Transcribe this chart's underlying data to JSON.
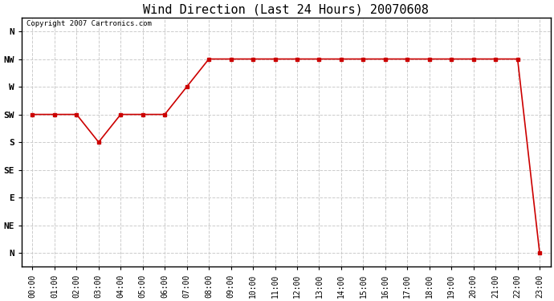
{
  "title": "Wind Direction (Last 24 Hours) 20070608",
  "copyright_text": "Copyright 2007 Cartronics.com",
  "background_color": "#ffffff",
  "plot_bg_color": "#ffffff",
  "line_color": "#cc0000",
  "marker": "s",
  "marker_size": 3,
  "grid_color": "#cccccc",
  "x_labels": [
    "00:00",
    "01:00",
    "02:00",
    "03:00",
    "04:00",
    "05:00",
    "06:00",
    "07:00",
    "08:00",
    "09:00",
    "10:00",
    "11:00",
    "12:00",
    "13:00",
    "14:00",
    "15:00",
    "16:00",
    "17:00",
    "18:00",
    "19:00",
    "20:00",
    "21:00",
    "22:00",
    "23:00"
  ],
  "y_labels_top_to_bottom": [
    "N",
    "NW",
    "W",
    "SW",
    "S",
    "SE",
    "E",
    "NE",
    "N"
  ],
  "data_points": [
    5,
    5,
    5,
    4,
    5,
    5,
    5,
    6,
    7,
    7,
    7,
    7,
    7,
    7,
    7,
    7,
    7,
    7,
    7,
    7,
    7,
    7,
    7,
    0
  ]
}
